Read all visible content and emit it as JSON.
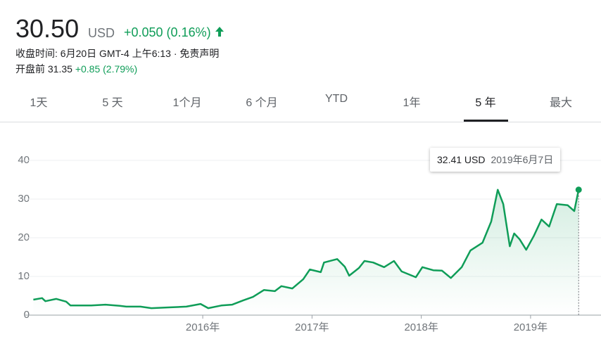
{
  "header": {
    "price": "30.50",
    "currency": "USD",
    "change": "+0.050 (0.16%)",
    "close_info": "收盘时间: 6月20日 GMT-4 上午6:13 · ",
    "disclaimer": "免责声明",
    "premarket_label": "开盘前 31.35",
    "premarket_change": "+0.85 (2.79%)"
  },
  "tabs": [
    "1天",
    "5 天",
    "1个月",
    "6 个月",
    "YTD",
    "1年",
    "5 年",
    "最大"
  ],
  "tooltip": {
    "price": "32.41 USD",
    "date": "2019年6月7日"
  },
  "chart_data": {
    "type": "area",
    "color": "#0f9d58",
    "x": [
      2014.45,
      2014.53,
      2014.56,
      2014.66,
      2014.75,
      2014.79,
      2014.98,
      2015.11,
      2015.24,
      2015.3,
      2015.43,
      2015.53,
      2015.69,
      2015.85,
      2015.98,
      2016.05,
      2016.17,
      2016.27,
      2016.37,
      2016.46,
      2016.56,
      2016.66,
      2016.72,
      2016.82,
      2016.92,
      2016.98,
      2017.08,
      2017.11,
      2017.23,
      2017.3,
      2017.34,
      2017.43,
      2017.48,
      2017.56,
      2017.66,
      2017.75,
      2017.82,
      2017.95,
      2018.01,
      2018.11,
      2018.19,
      2018.27,
      2018.37,
      2018.45,
      2018.56,
      2018.64,
      2018.7,
      2018.75,
      2018.81,
      2018.85,
      2018.9,
      2018.96,
      2019.03,
      2019.1,
      2019.17,
      2019.24,
      2019.34,
      2019.4,
      2019.44
    ],
    "values": [
      4.0,
      4.4,
      3.6,
      4.2,
      3.5,
      2.5,
      2.5,
      2.7,
      2.4,
      2.2,
      2.2,
      1.8,
      2.0,
      2.2,
      2.9,
      1.8,
      2.5,
      2.7,
      3.8,
      4.7,
      6.5,
      6.2,
      7.5,
      6.9,
      9.3,
      11.8,
      11.1,
      13.6,
      14.5,
      12.5,
      10.2,
      12.2,
      14.0,
      13.6,
      12.4,
      14.0,
      11.3,
      9.8,
      12.4,
      11.6,
      11.5,
      9.6,
      12.4,
      16.7,
      18.7,
      24.2,
      32.4,
      28.7,
      17.8,
      21.1,
      19.6,
      16.9,
      20.5,
      24.7,
      22.9,
      28.7,
      28.4,
      26.9,
      32.41
    ],
    "xlim": [
      2014.37,
      2019.49
    ],
    "xticks": [
      {
        "value": 2016,
        "label": "2016年"
      },
      {
        "value": 2017,
        "label": "2017年"
      },
      {
        "value": 2018,
        "label": "2018年"
      },
      {
        "value": 2019,
        "label": "2019年"
      }
    ],
    "ylim": [
      0,
      40
    ],
    "yticks": [
      0,
      10,
      20,
      30,
      40
    ],
    "grid": true
  }
}
